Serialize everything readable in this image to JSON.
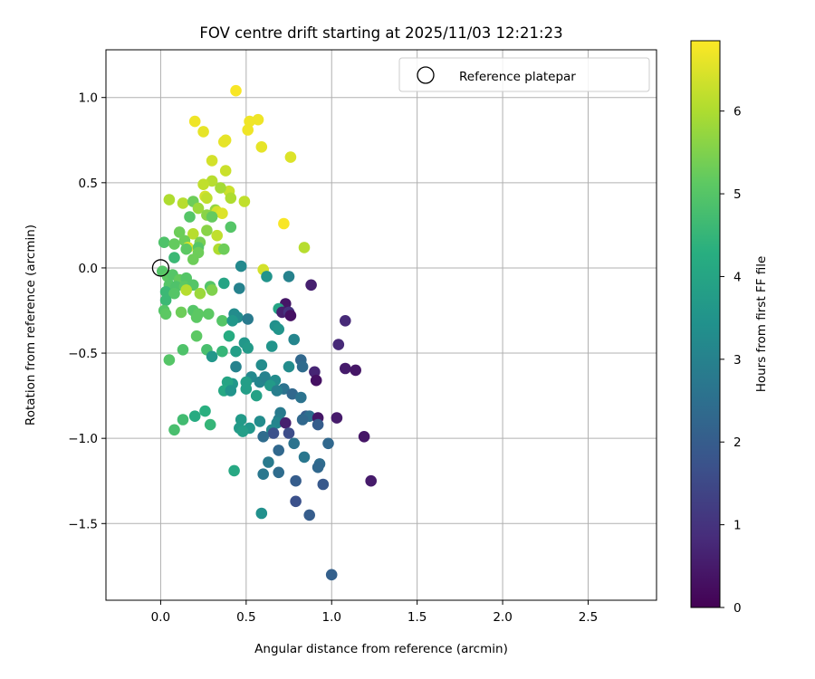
{
  "chart_data": {
    "type": "scatter",
    "title": "FOV centre drift starting at 2025/11/03 12:21:23",
    "xlabel": "Angular distance from reference (arcmin)",
    "ylabel": "Rotation from reference (arcmin)",
    "xlim": [
      -0.32,
      2.9
    ],
    "ylim": [
      -1.95,
      1.28
    ],
    "xticks": [
      0.0,
      0.5,
      1.0,
      1.5,
      2.0,
      2.5
    ],
    "xtick_labels": [
      "0.0",
      "0.5",
      "1.0",
      "1.5",
      "2.0",
      "2.5"
    ],
    "yticks": [
      1.0,
      0.5,
      0.0,
      -0.5,
      -1.0,
      -1.5
    ],
    "ytick_labels": [
      "1.0",
      "0.5",
      "0.0",
      "−0.5",
      "−1.0",
      "−1.5"
    ],
    "grid": true,
    "legend": {
      "position": "top-right",
      "entries": [
        {
          "label": "Reference platepar",
          "marker": "open-circle"
        }
      ]
    },
    "reference_point": {
      "x": 0.0,
      "y": 0.0
    },
    "colorbar": {
      "label": "Hours from first FF file",
      "min": 0.0,
      "max": 6.85,
      "ticks": [
        0,
        1,
        2,
        3,
        4,
        5,
        6
      ],
      "tick_labels": [
        "0",
        "1",
        "2",
        "3",
        "4",
        "5",
        "6"
      ],
      "colormap": "viridis"
    },
    "series": [
      {
        "name": "FOV centre drift",
        "points": [
          {
            "x": 0.44,
            "y": 1.04,
            "h": 6.8
          },
          {
            "x": 0.2,
            "y": 0.86,
            "h": 6.7
          },
          {
            "x": 0.57,
            "y": 0.87,
            "h": 6.7
          },
          {
            "x": 0.52,
            "y": 0.86,
            "h": 6.7
          },
          {
            "x": 0.51,
            "y": 0.81,
            "h": 6.7
          },
          {
            "x": 0.25,
            "y": 0.8,
            "h": 6.6
          },
          {
            "x": 0.37,
            "y": 0.74,
            "h": 6.6
          },
          {
            "x": 0.38,
            "y": 0.75,
            "h": 6.6
          },
          {
            "x": 0.59,
            "y": 0.71,
            "h": 6.6
          },
          {
            "x": 0.76,
            "y": 0.65,
            "h": 6.5
          },
          {
            "x": 0.3,
            "y": 0.63,
            "h": 6.4
          },
          {
            "x": 0.38,
            "y": 0.57,
            "h": 6.3
          },
          {
            "x": 0.3,
            "y": 0.51,
            "h": 6.1
          },
          {
            "x": 0.25,
            "y": 0.49,
            "h": 6.2
          },
          {
            "x": 0.4,
            "y": 0.45,
            "h": 6.3
          },
          {
            "x": 0.35,
            "y": 0.47,
            "h": 5.9
          },
          {
            "x": 0.26,
            "y": 0.42,
            "h": 6.4
          },
          {
            "x": 0.27,
            "y": 0.41,
            "h": 6.2
          },
          {
            "x": 0.05,
            "y": 0.4,
            "h": 6.0
          },
          {
            "x": 0.13,
            "y": 0.38,
            "h": 6.1
          },
          {
            "x": 0.41,
            "y": 0.41,
            "h": 6.0
          },
          {
            "x": 0.49,
            "y": 0.39,
            "h": 6.2
          },
          {
            "x": 0.19,
            "y": 0.39,
            "h": 5.3
          },
          {
            "x": 0.22,
            "y": 0.35,
            "h": 5.8
          },
          {
            "x": 0.27,
            "y": 0.31,
            "h": 5.6
          },
          {
            "x": 0.32,
            "y": 0.34,
            "h": 5.7
          },
          {
            "x": 0.33,
            "y": 0.33,
            "h": 6.4
          },
          {
            "x": 0.36,
            "y": 0.32,
            "h": 6.5
          },
          {
            "x": 0.3,
            "y": 0.3,
            "h": 5.2
          },
          {
            "x": 0.17,
            "y": 0.3,
            "h": 5.0
          },
          {
            "x": 0.72,
            "y": 0.26,
            "h": 6.8
          },
          {
            "x": 0.41,
            "y": 0.24,
            "h": 5.0
          },
          {
            "x": 0.11,
            "y": 0.21,
            "h": 5.3
          },
          {
            "x": 0.19,
            "y": 0.2,
            "h": 6.1
          },
          {
            "x": 0.27,
            "y": 0.22,
            "h": 5.6
          },
          {
            "x": 0.33,
            "y": 0.19,
            "h": 6.2
          },
          {
            "x": 0.14,
            "y": 0.16,
            "h": 5.3
          },
          {
            "x": 0.02,
            "y": 0.15,
            "h": 4.9
          },
          {
            "x": 0.08,
            "y": 0.14,
            "h": 5.2
          },
          {
            "x": 0.23,
            "y": 0.15,
            "h": 5.4
          },
          {
            "x": 0.16,
            "y": 0.12,
            "h": 6.5
          },
          {
            "x": 0.22,
            "y": 0.12,
            "h": 5.0
          },
          {
            "x": 0.15,
            "y": 0.11,
            "h": 5.1
          },
          {
            "x": 0.34,
            "y": 0.11,
            "h": 6.0
          },
          {
            "x": 0.37,
            "y": 0.11,
            "h": 5.3
          },
          {
            "x": 0.84,
            "y": 0.12,
            "h": 6.1
          },
          {
            "x": 0.08,
            "y": 0.06,
            "h": 4.6
          },
          {
            "x": 0.22,
            "y": 0.09,
            "h": 5.3
          },
          {
            "x": 0.19,
            "y": 0.05,
            "h": 5.3
          },
          {
            "x": 0.47,
            "y": 0.01,
            "h": 3.2
          },
          {
            "x": 0.6,
            "y": -0.01,
            "h": 6.4
          },
          {
            "x": 0.01,
            "y": -0.02,
            "h": 5.0
          },
          {
            "x": 0.04,
            "y": -0.05,
            "h": 5.1
          },
          {
            "x": 0.07,
            "y": -0.04,
            "h": 5.0
          },
          {
            "x": 0.11,
            "y": -0.07,
            "h": 5.2
          },
          {
            "x": 0.15,
            "y": -0.06,
            "h": 5.0
          },
          {
            "x": 0.62,
            "y": -0.05,
            "h": 3.5
          },
          {
            "x": 0.75,
            "y": -0.05,
            "h": 3.0
          },
          {
            "x": 0.05,
            "y": -0.1,
            "h": 5.0
          },
          {
            "x": 0.09,
            "y": -0.11,
            "h": 4.9
          },
          {
            "x": 0.14,
            "y": -0.11,
            "h": 5.1
          },
          {
            "x": 0.19,
            "y": -0.1,
            "h": 5.0
          },
          {
            "x": 0.29,
            "y": -0.11,
            "h": 5.0
          },
          {
            "x": 0.37,
            "y": -0.09,
            "h": 4.0
          },
          {
            "x": 0.46,
            "y": -0.12,
            "h": 3.0
          },
          {
            "x": 0.88,
            "y": -0.1,
            "h": 0.6
          },
          {
            "x": 0.03,
            "y": -0.14,
            "h": 4.6
          },
          {
            "x": 0.08,
            "y": -0.15,
            "h": 5.0
          },
          {
            "x": 0.15,
            "y": -0.13,
            "h": 6.1
          },
          {
            "x": 0.23,
            "y": -0.15,
            "h": 5.8
          },
          {
            "x": 0.3,
            "y": -0.13,
            "h": 5.5
          },
          {
            "x": 0.03,
            "y": -0.19,
            "h": 4.6
          },
          {
            "x": 0.73,
            "y": -0.21,
            "h": 0.4
          },
          {
            "x": 0.69,
            "y": -0.24,
            "h": 4.0
          },
          {
            "x": 0.02,
            "y": -0.25,
            "h": 5.0
          },
          {
            "x": 0.03,
            "y": -0.27,
            "h": 5.1
          },
          {
            "x": 0.12,
            "y": -0.26,
            "h": 5.3
          },
          {
            "x": 0.19,
            "y": -0.25,
            "h": 5.0
          },
          {
            "x": 0.22,
            "y": -0.27,
            "h": 5.1
          },
          {
            "x": 0.28,
            "y": -0.27,
            "h": 5.1
          },
          {
            "x": 0.43,
            "y": -0.27,
            "h": 3.3
          },
          {
            "x": 0.45,
            "y": -0.29,
            "h": 3.3
          },
          {
            "x": 0.71,
            "y": -0.26,
            "h": 0.6
          },
          {
            "x": 0.75,
            "y": -0.26,
            "h": 1.0
          },
          {
            "x": 0.21,
            "y": -0.29,
            "h": 5.1
          },
          {
            "x": 0.36,
            "y": -0.31,
            "h": 5.0
          },
          {
            "x": 0.42,
            "y": -0.31,
            "h": 3.6
          },
          {
            "x": 0.51,
            "y": -0.3,
            "h": 2.8
          },
          {
            "x": 0.76,
            "y": -0.28,
            "h": 0.3
          },
          {
            "x": 1.08,
            "y": -0.31,
            "h": 0.8
          },
          {
            "x": 0.67,
            "y": -0.34,
            "h": 3.4
          },
          {
            "x": 0.69,
            "y": -0.36,
            "h": 3.5
          },
          {
            "x": 0.4,
            "y": -0.4,
            "h": 4.2
          },
          {
            "x": 0.21,
            "y": -0.4,
            "h": 5.1
          },
          {
            "x": 0.78,
            "y": -0.42,
            "h": 3.1
          },
          {
            "x": 0.49,
            "y": -0.44,
            "h": 3.6
          },
          {
            "x": 0.65,
            "y": -0.46,
            "h": 3.5
          },
          {
            "x": 1.04,
            "y": -0.45,
            "h": 0.8
          },
          {
            "x": 0.13,
            "y": -0.48,
            "h": 4.9
          },
          {
            "x": 0.27,
            "y": -0.48,
            "h": 4.8
          },
          {
            "x": 0.36,
            "y": -0.49,
            "h": 4.5
          },
          {
            "x": 0.44,
            "y": -0.49,
            "h": 3.8
          },
          {
            "x": 0.51,
            "y": -0.47,
            "h": 3.7
          },
          {
            "x": 0.3,
            "y": -0.52,
            "h": 3.6
          },
          {
            "x": 0.05,
            "y": -0.54,
            "h": 5.0
          },
          {
            "x": 0.82,
            "y": -0.54,
            "h": 2.3
          },
          {
            "x": 0.44,
            "y": -0.58,
            "h": 3.0
          },
          {
            "x": 0.59,
            "y": -0.57,
            "h": 3.3
          },
          {
            "x": 0.75,
            "y": -0.58,
            "h": 3.3
          },
          {
            "x": 0.83,
            "y": -0.58,
            "h": 2.4
          },
          {
            "x": 1.08,
            "y": -0.59,
            "h": 0.5
          },
          {
            "x": 1.14,
            "y": -0.6,
            "h": 0.4
          },
          {
            "x": 0.9,
            "y": -0.61,
            "h": 0.7
          },
          {
            "x": 0.53,
            "y": -0.64,
            "h": 3.2
          },
          {
            "x": 0.58,
            "y": -0.67,
            "h": 3.1
          },
          {
            "x": 0.61,
            "y": -0.64,
            "h": 3.0
          },
          {
            "x": 0.67,
            "y": -0.66,
            "h": 3.3
          },
          {
            "x": 0.91,
            "y": -0.66,
            "h": 0.3
          },
          {
            "x": 0.42,
            "y": -0.68,
            "h": 3.6
          },
          {
            "x": 0.39,
            "y": -0.67,
            "h": 4.0
          },
          {
            "x": 0.5,
            "y": -0.67,
            "h": 3.8
          },
          {
            "x": 0.64,
            "y": -0.69,
            "h": 3.7
          },
          {
            "x": 0.72,
            "y": -0.71,
            "h": 2.6
          },
          {
            "x": 0.77,
            "y": -0.74,
            "h": 2.3
          },
          {
            "x": 0.37,
            "y": -0.72,
            "h": 4.1
          },
          {
            "x": 0.41,
            "y": -0.72,
            "h": 3.5
          },
          {
            "x": 0.5,
            "y": -0.71,
            "h": 3.8
          },
          {
            "x": 0.56,
            "y": -0.75,
            "h": 3.9
          },
          {
            "x": 0.68,
            "y": -0.72,
            "h": 2.9
          },
          {
            "x": 0.82,
            "y": -0.76,
            "h": 2.6
          },
          {
            "x": 0.26,
            "y": -0.84,
            "h": 4.3
          },
          {
            "x": 0.2,
            "y": -0.87,
            "h": 4.2
          },
          {
            "x": 0.13,
            "y": -0.89,
            "h": 4.7
          },
          {
            "x": 0.29,
            "y": -0.92,
            "h": 4.5
          },
          {
            "x": 0.08,
            "y": -0.95,
            "h": 4.8
          },
          {
            "x": 0.47,
            "y": -0.89,
            "h": 3.7
          },
          {
            "x": 0.58,
            "y": -0.9,
            "h": 3.3
          },
          {
            "x": 0.7,
            "y": -0.85,
            "h": 2.8
          },
          {
            "x": 0.69,
            "y": -0.89,
            "h": 2.9
          },
          {
            "x": 0.68,
            "y": -0.91,
            "h": 3.1
          },
          {
            "x": 0.73,
            "y": -0.91,
            "h": 0.6
          },
          {
            "x": 0.85,
            "y": -0.87,
            "h": 2.0
          },
          {
            "x": 0.87,
            "y": -0.87,
            "h": 2.5
          },
          {
            "x": 0.92,
            "y": -0.88,
            "h": 0.4
          },
          {
            "x": 1.03,
            "y": -0.88,
            "h": 0.5
          },
          {
            "x": 0.83,
            "y": -0.89,
            "h": 2.3
          },
          {
            "x": 0.92,
            "y": -0.92,
            "h": 2.0
          },
          {
            "x": 0.46,
            "y": -0.94,
            "h": 3.7
          },
          {
            "x": 0.52,
            "y": -0.94,
            "h": 3.6
          },
          {
            "x": 0.48,
            "y": -0.96,
            "h": 3.8
          },
          {
            "x": 0.65,
            "y": -0.95,
            "h": 3.2
          },
          {
            "x": 0.66,
            "y": -0.97,
            "h": 1.7
          },
          {
            "x": 0.75,
            "y": -0.97,
            "h": 1.6
          },
          {
            "x": 0.6,
            "y": -0.99,
            "h": 2.4
          },
          {
            "x": 0.78,
            "y": -1.03,
            "h": 2.6
          },
          {
            "x": 0.98,
            "y": -1.03,
            "h": 2.3
          },
          {
            "x": 1.19,
            "y": -0.99,
            "h": 0.4
          },
          {
            "x": 0.69,
            "y": -1.07,
            "h": 2.3
          },
          {
            "x": 0.84,
            "y": -1.11,
            "h": 2.7
          },
          {
            "x": 0.63,
            "y": -1.14,
            "h": 2.8
          },
          {
            "x": 0.93,
            "y": -1.15,
            "h": 2.4
          },
          {
            "x": 0.92,
            "y": -1.17,
            "h": 2.3
          },
          {
            "x": 0.43,
            "y": -1.19,
            "h": 4.1
          },
          {
            "x": 0.6,
            "y": -1.21,
            "h": 2.7
          },
          {
            "x": 0.69,
            "y": -1.2,
            "h": 2.4
          },
          {
            "x": 0.79,
            "y": -1.25,
            "h": 2.0
          },
          {
            "x": 0.95,
            "y": -1.27,
            "h": 1.9
          },
          {
            "x": 1.23,
            "y": -1.25,
            "h": 0.5
          },
          {
            "x": 0.59,
            "y": -1.44,
            "h": 3.4
          },
          {
            "x": 0.79,
            "y": -1.37,
            "h": 1.7
          },
          {
            "x": 0.87,
            "y": -1.45,
            "h": 2.0
          },
          {
            "x": 1.0,
            "y": -1.8,
            "h": 2.1
          }
        ]
      }
    ]
  }
}
